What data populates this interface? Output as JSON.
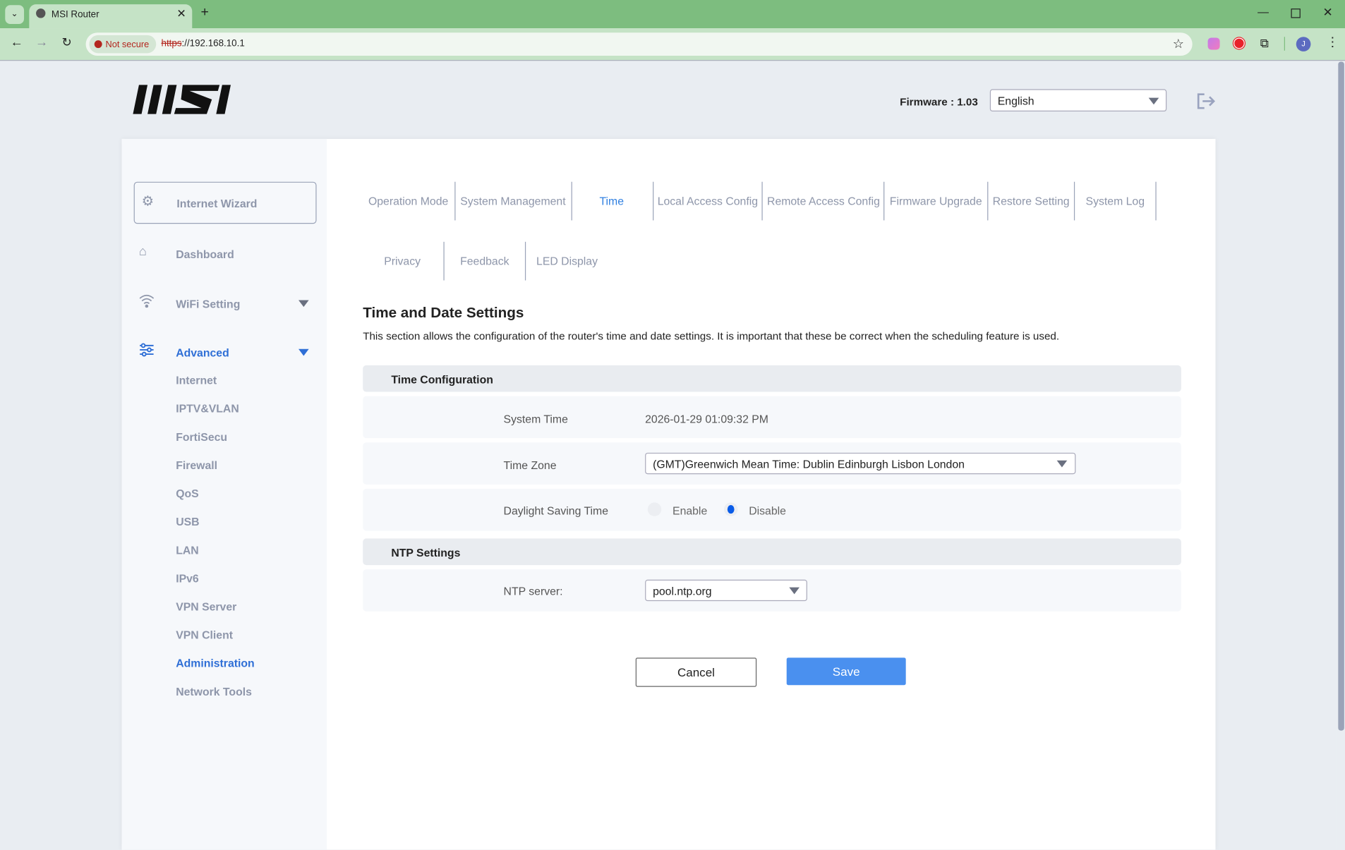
{
  "browser": {
    "tab_title": "MSI Router",
    "not_secure": "Not secure",
    "url_scheme": "https",
    "url_rest": "://192.168.10.1",
    "profile_initial": "J"
  },
  "header": {
    "logo": "MSI",
    "firmware": "Firmware : 1.03",
    "language": "English"
  },
  "sidebar": {
    "wizard": "Internet Wizard",
    "dashboard": "Dashboard",
    "wifi": "WiFi Setting",
    "advanced": "Advanced",
    "sub_items": [
      "Internet",
      "IPTV&VLAN",
      "FortiSecu",
      "Firewall",
      "QoS",
      "USB",
      "LAN",
      "IPv6",
      "VPN Server",
      "VPN Client",
      "Administration",
      "Network Tools"
    ],
    "active_sub": "Administration"
  },
  "tabs": {
    "row1": [
      "Operation Mode",
      "System Management",
      "Time",
      "Local Access Config",
      "Remote Access Config",
      "Firmware Upgrade",
      "Restore Setting",
      "System Log"
    ],
    "row2": [
      "Privacy",
      "Feedback",
      "LED Display"
    ],
    "active": "Time"
  },
  "main": {
    "title": "Time and Date Settings",
    "description": "This section allows the configuration of the router's time and date settings. It is important that these be correct when the scheduling feature is used.",
    "time_config": {
      "header": "Time Configuration",
      "system_time_label": "System Time",
      "system_time": "2026-01-29 01:09:32 PM",
      "time_zone_label": "Time Zone",
      "time_zone": "(GMT)Greenwich Mean Time: Dublin Edinburgh Lisbon London",
      "dst_label": "Daylight Saving Time",
      "enable": "Enable",
      "disable": "Disable",
      "dst_selected": "Disable"
    },
    "ntp": {
      "header": "NTP Settings",
      "server_label": "NTP server:",
      "server": "pool.ntp.org"
    },
    "cancel": "Cancel",
    "save": "Save"
  },
  "colors": {
    "accent": "#2f6fd6",
    "save": "#4a90ef",
    "browser_frame": "#7dbd7f"
  }
}
